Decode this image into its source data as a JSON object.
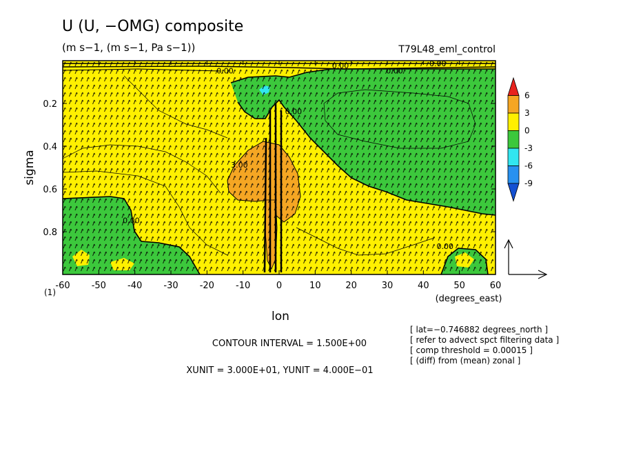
{
  "title": "U (U, −OMG) composite",
  "units": "(m s−1, (m s−1, Pa s−1))",
  "experiment": "T79L48_eml_control",
  "corner_label": "(1)",
  "contour_interval_text": "CONTOUR INTERVAL = 1.500E+00",
  "unit_vector_text": "XUNIT = 3.000E+01, YUNIT = 4.000E−01",
  "notes": [
    "[ lat=−0.746882 degrees_north ]",
    "[ refer to advect spct filtering data ]",
    "[ comp threshold = 0.00015 ]",
    "[ (diff) from (mean) zonal ]"
  ],
  "chart_data": {
    "type": "heatmap",
    "xlabel": "lon",
    "xunits": "(degrees_east)",
    "ylabel": "sigma",
    "xlim": [
      -60,
      60
    ],
    "ylim": [
      1.0,
      0.0
    ],
    "xticks": [
      -60,
      -50,
      -40,
      -30,
      -20,
      -10,
      0,
      10,
      20,
      30,
      40,
      50,
      60
    ],
    "yticks": [
      0.2,
      0.4,
      0.6,
      0.8
    ],
    "colorbar": {
      "labels": [
        6,
        3,
        0,
        -3,
        -6,
        -9
      ],
      "colors": [
        "#e8231e",
        "#f5a623",
        "#fff000",
        "#3cc83c",
        "#32e6f0",
        "#2891f0",
        "#1450d2"
      ]
    },
    "contour_labels": [
      {
        "text": "0.00",
        "x": -15,
        "y": 0.06
      },
      {
        "text": "0.00",
        "x": 17,
        "y": 0.035
      },
      {
        "text": "0.00",
        "x": 32,
        "y": 0.06
      },
      {
        "text": "0.00",
        "x": 44,
        "y": 0.025
      },
      {
        "text": "0.00",
        "x": 4,
        "y": 0.25
      },
      {
        "text": "3.00",
        "x": -11,
        "y": 0.5
      },
      {
        "text": "0.00",
        "x": -41,
        "y": 0.76
      },
      {
        "text": "0.00",
        "x": 46,
        "y": 0.88
      }
    ]
  }
}
